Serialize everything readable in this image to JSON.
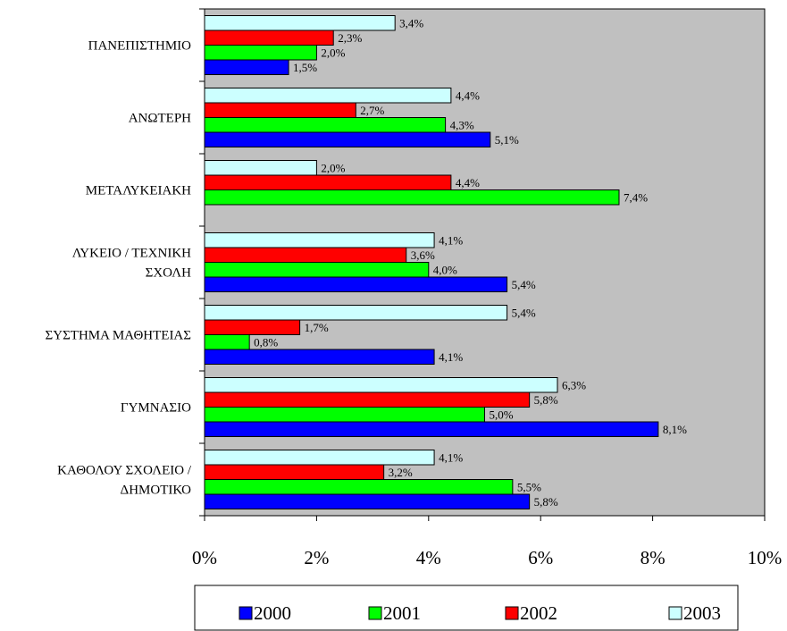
{
  "chart_data": {
    "type": "bar",
    "orientation": "horizontal",
    "title": "",
    "xlabel": "",
    "ylabel": "",
    "xlim": [
      0,
      10
    ],
    "x_ticks": [
      "0%",
      "2%",
      "4%",
      "6%",
      "8%",
      "10%"
    ],
    "categories": [
      [
        "ΠΑΝΕΠΙΣΤΗΜΙΟ"
      ],
      [
        "ΑΝΩΤΕΡΗ"
      ],
      [
        "ΜΕΤΑΛΥΚΕΙΑΚΗ"
      ],
      [
        "ΛΥΚΕΙΟ / ΤΕΧΝΙΚΗ",
        "ΣΧΟΛΗ"
      ],
      [
        "ΣΥΣΤΗΜΑ ΜΑΘΗΤΕΙΑΣ"
      ],
      [
        "ΓΥΜΝΑΣΙΟ"
      ],
      [
        "ΚΑΘΟΛΟΥ ΣΧΟΛΕΙΟ /",
        "ΔΗΜΟΤΙΚΟ"
      ]
    ],
    "series": [
      {
        "name": "2000",
        "color": "#0000ff",
        "values": [
          1.5,
          5.1,
          null,
          5.4,
          4.1,
          8.1,
          5.8
        ],
        "labels": [
          "1,5%",
          "5,1%",
          "",
          "5,4%",
          "4,1%",
          "8,1%",
          "5,8%"
        ]
      },
      {
        "name": "2001",
        "color": "#00ff00",
        "values": [
          2.0,
          4.3,
          7.4,
          4.0,
          0.8,
          5.0,
          5.5
        ],
        "labels": [
          "2,0%",
          "4,3%",
          "7,4%",
          "4,0%",
          "0,8%",
          "5,0%",
          "5,5%"
        ]
      },
      {
        "name": "2002",
        "color": "#ff0000",
        "values": [
          2.3,
          2.7,
          4.4,
          3.6,
          1.7,
          5.8,
          3.2
        ],
        "labels": [
          "2,3%",
          "2,7%",
          "4,4%",
          "3,6%",
          "1,7%",
          "5,8%",
          "3,2%"
        ]
      },
      {
        "name": "2003",
        "color": "#ccffff",
        "values": [
          3.4,
          4.4,
          2.0,
          4.1,
          5.4,
          6.3,
          4.1
        ],
        "labels": [
          "3,4%",
          "4,4%",
          "2,0%",
          "4,1%",
          "5,4%",
          "6,3%",
          "4,1%"
        ]
      }
    ],
    "plot_background": "#c0c0c0",
    "grid": false,
    "legend_position": "bottom"
  }
}
